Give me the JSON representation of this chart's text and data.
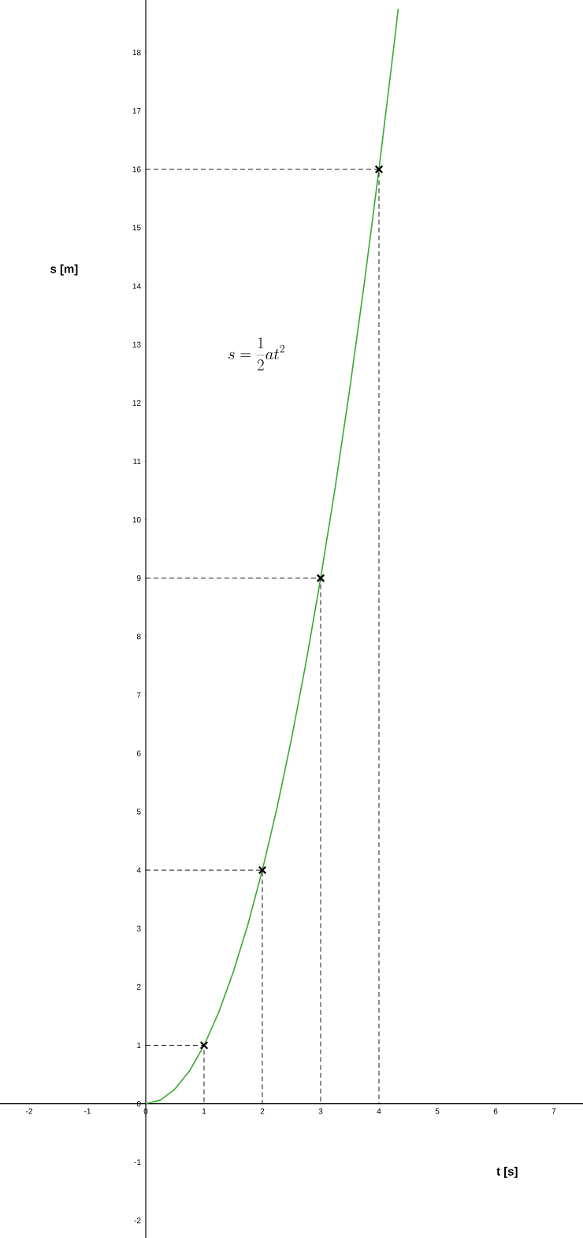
{
  "chart_data": {
    "type": "line",
    "xlabel": "t [s]",
    "ylabel": "s [m]",
    "annotations": [
      "s=\\frac{1}{2}at^{2}"
    ],
    "xlim": [
      -2.5,
      7.5
    ],
    "ylim": [
      -2.3,
      18.9
    ],
    "xticks": [
      -2,
      -1,
      0,
      1,
      2,
      3,
      4,
      5,
      6,
      7
    ],
    "yticks": [
      -2,
      -1,
      0,
      1,
      2,
      3,
      4,
      5,
      6,
      7,
      8,
      9,
      10,
      11,
      12,
      13,
      14,
      15,
      16,
      17,
      18
    ],
    "grid": false,
    "series": [
      {
        "color": "#3aa832",
        "line_style": "solid",
        "x": [
          0,
          0.25,
          0.5,
          0.75,
          1,
          1.25,
          1.5,
          1.75,
          2,
          2.25,
          2.5,
          2.75,
          3,
          3.25,
          3.5,
          3.75,
          4,
          4.25,
          4.33
        ],
        "values": [
          0,
          0.06,
          0.25,
          0.56,
          1,
          1.56,
          2.25,
          3.06,
          4,
          5.06,
          6.25,
          7.56,
          9,
          10.56,
          12.25,
          14.06,
          16,
          18.06,
          18.75
        ]
      },
      {
        "type": "scatter",
        "color": "#000000",
        "marker": "cross",
        "x": [
          1,
          2,
          3,
          4
        ],
        "values": [
          1,
          4,
          9,
          16
        ]
      },
      {
        "color": "#000000",
        "line_style": "dashed",
        "x": [
          0,
          1,
          1
        ],
        "values": [
          1,
          1,
          0
        ]
      },
      {
        "color": "#000000",
        "line_style": "dashed",
        "x": [
          0,
          2,
          2
        ],
        "values": [
          4,
          4,
          0
        ]
      },
      {
        "color": "#000000",
        "line_style": "dashed",
        "x": [
          0,
          3,
          3
        ],
        "values": [
          9,
          9,
          0
        ]
      },
      {
        "color": "#000000",
        "line_style": "dashed",
        "x": [
          0,
          4,
          4
        ],
        "values": [
          16,
          16,
          0
        ]
      }
    ]
  }
}
